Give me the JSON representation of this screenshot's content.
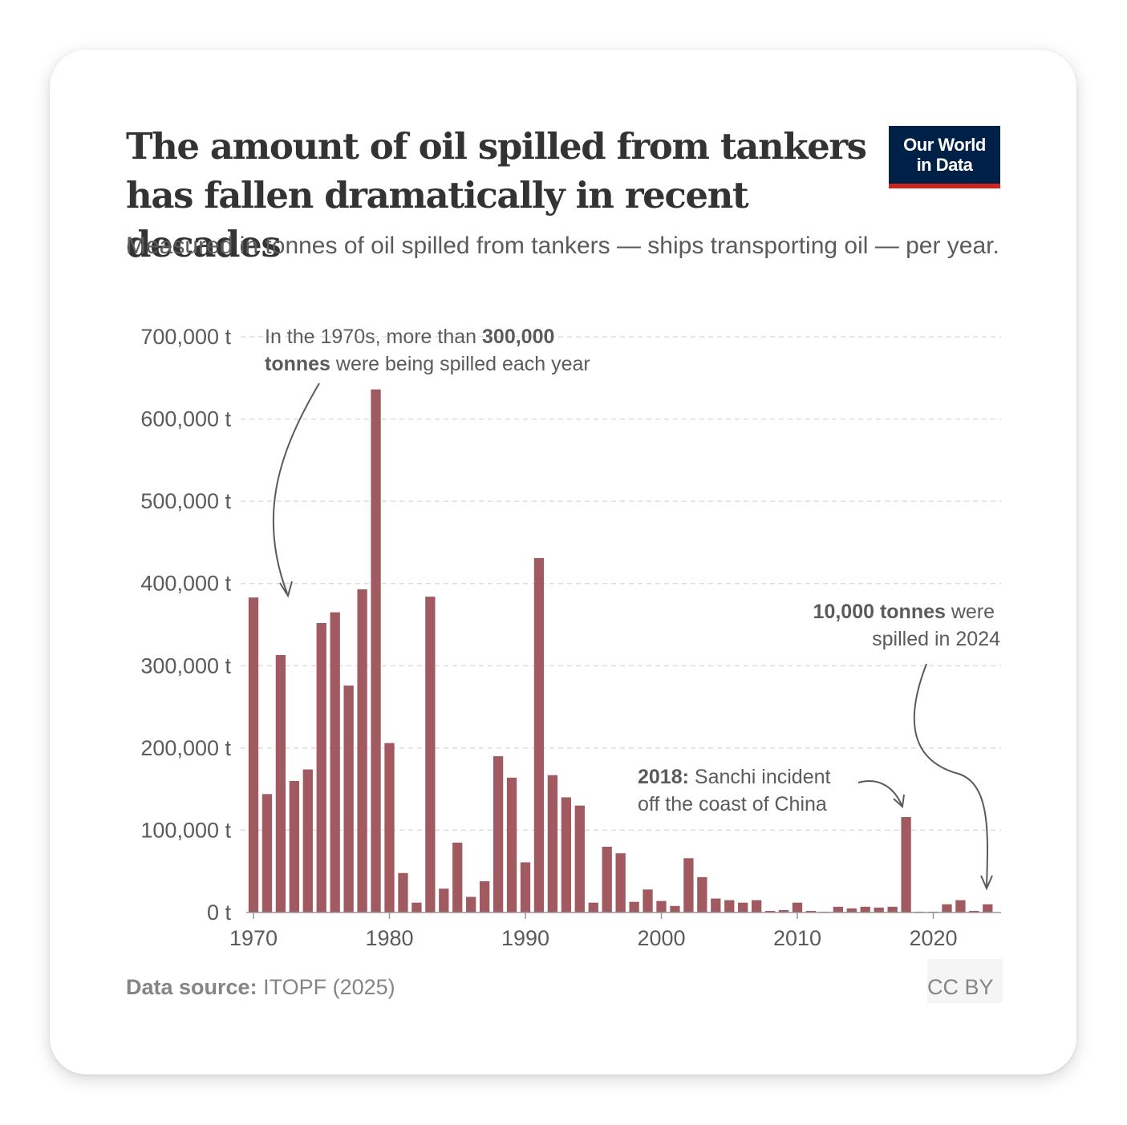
{
  "title": "The amount of oil spilled from tankers has fallen dramatically in recent decades",
  "subtitle": "Measured in tonnes of oil spilled from tankers — ships transporting oil — per year.",
  "logo": {
    "line1": "Our World",
    "line2": "in Data"
  },
  "footer": {
    "source_label": "Data source:",
    "source_text": "ITOPF (2025)",
    "license": "CC BY"
  },
  "colors": {
    "bar": "#a05a60",
    "text": "#5b5b5b",
    "grid": "#dddddd",
    "logo_bg": "#002147",
    "logo_accent": "#ce261e"
  },
  "annotations": {
    "a1970s": {
      "pre": "In the 1970s, more than ",
      "bold": "300,000",
      "bold2": "tonnes",
      "post": " were being spilled each year"
    },
    "a2018": {
      "bold": "2018:",
      "line1": " Sanchi incident",
      "line2": "off the coast of China"
    },
    "a2024": {
      "bold": "10,000 tonnes",
      "line1": " were",
      "line2": "spilled in 2024"
    }
  },
  "chart_data": {
    "type": "bar",
    "title": "The amount of oil spilled from tankers has fallen dramatically in recent decades",
    "ylabel": "",
    "xlabel": "",
    "ylim": [
      0,
      700000
    ],
    "yticks": [
      0,
      100000,
      200000,
      300000,
      400000,
      500000,
      600000,
      700000
    ],
    "ytick_labels": [
      "0 t",
      "100,000 t",
      "200,000 t",
      "300,000 t",
      "400,000 t",
      "500,000 t",
      "600,000 t",
      "700,000 t"
    ],
    "xticks": [
      1970,
      1980,
      1990,
      2000,
      2010,
      2020
    ],
    "xtick_labels": [
      "1970",
      "1980",
      "1990",
      "2000",
      "2010",
      "2020"
    ],
    "grid": true,
    "x": [
      1970,
      1971,
      1972,
      1973,
      1974,
      1975,
      1976,
      1977,
      1978,
      1979,
      1980,
      1981,
      1982,
      1983,
      1984,
      1985,
      1986,
      1987,
      1988,
      1989,
      1990,
      1991,
      1992,
      1993,
      1994,
      1995,
      1996,
      1997,
      1998,
      1999,
      2000,
      2001,
      2002,
      2003,
      2004,
      2005,
      2006,
      2007,
      2008,
      2009,
      2010,
      2011,
      2012,
      2013,
      2014,
      2015,
      2016,
      2017,
      2018,
      2019,
      2020,
      2021,
      2022,
      2023,
      2024
    ],
    "values": [
      383000,
      144000,
      313000,
      160000,
      174000,
      352000,
      365000,
      276000,
      393000,
      636000,
      206000,
      48000,
      12000,
      384000,
      29000,
      85000,
      19000,
      38000,
      190000,
      164000,
      61000,
      431000,
      167000,
      140000,
      130000,
      12000,
      80000,
      72000,
      13000,
      28000,
      14000,
      8000,
      66000,
      43000,
      17000,
      15000,
      12000,
      15000,
      2000,
      3000,
      12000,
      2000,
      1000,
      7000,
      5000,
      7000,
      6000,
      7000,
      116000,
      1000,
      1000,
      10000,
      15000,
      2000,
      10000
    ]
  }
}
